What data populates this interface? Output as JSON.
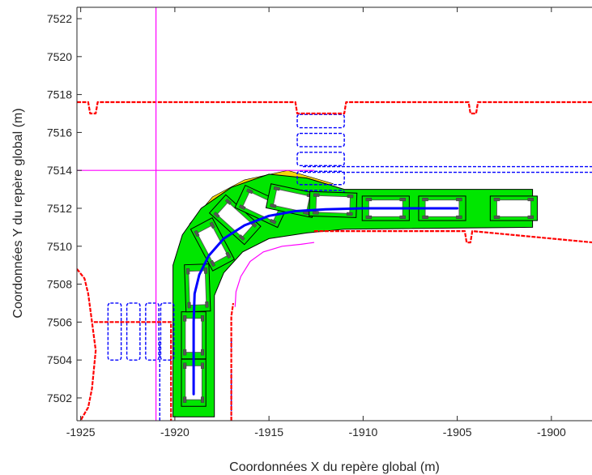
{
  "chart_data": {
    "type": "line",
    "title": "",
    "xlabel": "Coordonnées X du repère global (m)",
    "ylabel": "Coordonnées Y du repère global (m)",
    "xlim": [
      -1925.2,
      -1897.8
    ],
    "ylim": [
      7500.8,
      7522.6
    ],
    "xticks": [
      -1925,
      -1920,
      -1915,
      -1910,
      -1905,
      -1900
    ],
    "yticks": [
      7502,
      7504,
      7506,
      7508,
      7510,
      7512,
      7514,
      7516,
      7518,
      7520,
      7522
    ],
    "grid": false,
    "box": true,
    "colors": {
      "curb": "#ff0000",
      "marking": "#0000ff",
      "trajectory": "#0000ff",
      "reference": "#ff00ff",
      "swept_path": "#00e600",
      "overhang": "#f5d60a",
      "vehicle": "#000000"
    },
    "series": [
      {
        "role": "trajectory",
        "x": [
          -1919.0,
          -1919.0,
          -1919.0,
          -1918.95,
          -1918.7,
          -1918.2,
          -1917.4,
          -1916.3,
          -1915.0,
          -1913.6,
          -1912.0,
          -1910.0,
          -1905.0
        ],
        "y": [
          7502.2,
          7504.0,
          7506.0,
          7507.5,
          7508.5,
          7509.5,
          7510.4,
          7511.1,
          7511.6,
          7511.85,
          7511.95,
          7512.0,
          7512.0
        ]
      },
      {
        "role": "reference-vertical",
        "x": [
          -1921.0,
          -1921.0
        ],
        "y": [
          7500.8,
          7522.6
        ]
      },
      {
        "role": "reference-horizontal",
        "x": [
          -1925.2,
          -1912.6
        ],
        "y": [
          7514.0,
          7514.0
        ]
      },
      {
        "role": "reference-inner-curve",
        "x": [
          -1916.8,
          -1916.75,
          -1916.5,
          -1916.0,
          -1915.3,
          -1914.3,
          -1913.3,
          -1912.6
        ],
        "y": [
          7506.8,
          7507.6,
          7508.4,
          7509.2,
          7509.7,
          7510.0,
          7510.1,
          7510.2
        ]
      },
      {
        "role": "curb-top",
        "x": [
          -1925.2,
          -1924.6,
          -1924.5,
          -1924.2,
          -1924.1,
          -1913.6,
          -1913.5,
          -1911.0,
          -1910.9,
          -1904.4,
          -1904.3,
          -1904.0,
          -1903.9,
          -1897.8
        ],
        "y": [
          7517.6,
          7517.6,
          7517.0,
          7517.0,
          7517.6,
          7517.6,
          7517.0,
          7517.0,
          7517.6,
          7517.6,
          7517.0,
          7517.0,
          7517.6,
          7517.6
        ]
      },
      {
        "role": "curb-right-lower",
        "x": [
          -1912.6,
          -1904.6,
          -1904.5,
          -1904.3,
          -1904.2,
          -1897.8
        ],
        "y": [
          7510.8,
          7510.8,
          7510.2,
          7510.2,
          7510.8,
          7510.2
        ]
      },
      {
        "role": "curb-left",
        "x": [
          -1925.2,
          -1924.8,
          -1924.6,
          -1924.4,
          -1924.2,
          -1924.3,
          -1924.4,
          -1924.6,
          -1924.9,
          -1925.0
        ],
        "y": [
          7508.8,
          7508.3,
          7507.5,
          7506.0,
          7504.5,
          7503.5,
          7502.5,
          7501.5,
          7501.0,
          7500.8
        ]
      },
      {
        "role": "curb-left-inner",
        "x": [
          -1924.3,
          -1920.2,
          -1920.2
        ],
        "y": [
          7506.0,
          7506.0,
          7500.8
        ]
      },
      {
        "role": "curb-right-inner",
        "x": [
          -1917.0,
          -1917.0,
          -1916.9
        ],
        "y": [
          7500.8,
          7506.3,
          7507.0
        ]
      }
    ],
    "markings": {
      "crossing_top": {
        "x_range": [
          -1913.5,
          -1911.0
        ],
        "y_centers": [
          7516.6,
          7515.6,
          7514.6,
          7513.6,
          7512.6
        ],
        "bar_height": 0.7
      },
      "crossing_left": {
        "y_range": [
          7504.0,
          7507.0
        ],
        "x_centers": [
          -1923.2,
          -1922.2,
          -1921.2,
          -1920.4
        ],
        "bar_width": 0.7
      },
      "lane_line_right": {
        "x_range": [
          -1913.2,
          -1897.8
        ],
        "y": [
          7513.9,
          7514.2
        ]
      },
      "lane_line_bottom": {
        "x": [
          -1920.8,
          -1917.0
        ],
        "y_range": [
          7500.8,
          7505.0
        ]
      }
    },
    "vehicle_poses": [
      {
        "x": -1919.0,
        "y": 7502.8,
        "heading_deg": 90
      },
      {
        "x": -1919.0,
        "y": 7505.3,
        "heading_deg": 90
      },
      {
        "x": -1918.8,
        "y": 7507.8,
        "heading_deg": 92
      },
      {
        "x": -1918.0,
        "y": 7510.1,
        "heading_deg": 118
      },
      {
        "x": -1916.8,
        "y": 7511.4,
        "heading_deg": 138
      },
      {
        "x": -1915.4,
        "y": 7512.1,
        "heading_deg": 155
      },
      {
        "x": -1913.8,
        "y": 7512.4,
        "heading_deg": 168
      },
      {
        "x": -1911.6,
        "y": 7512.2,
        "heading_deg": 178
      },
      {
        "x": -1908.8,
        "y": 7512.0,
        "heading_deg": 180
      },
      {
        "x": -1905.8,
        "y": 7512.0,
        "heading_deg": 180
      },
      {
        "x": -1902.0,
        "y": 7512.0,
        "heading_deg": 180
      }
    ]
  }
}
